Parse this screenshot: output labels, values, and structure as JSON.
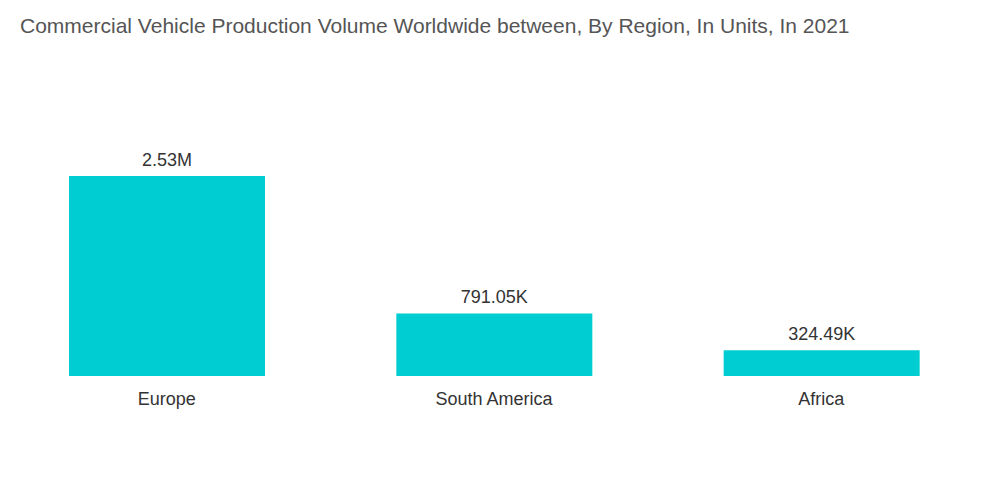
{
  "chart_data": {
    "type": "bar",
    "title": "Commercial Vehicle Production Volume Worldwide between, By Region, In Units, In 2021",
    "categories": [
      "Europe",
      "South America",
      "Africa"
    ],
    "values": [
      2530000,
      791050,
      324490
    ],
    "value_labels": [
      "2.53M",
      "791.05K",
      "324.49K"
    ],
    "color": "#00cdd2",
    "ylim": [
      0,
      2530000
    ],
    "grid": false,
    "data_labels": true,
    "tick_labels": "x"
  }
}
